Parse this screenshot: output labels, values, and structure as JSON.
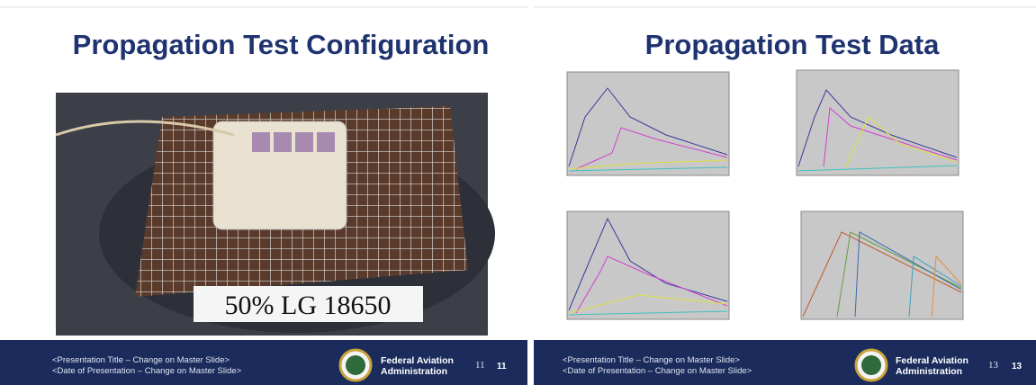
{
  "slides": [
    {
      "title": "Propagation Test Configuration",
      "photo_label": "50% LG 18650",
      "footer": {
        "line1": "<Presentation Title – Change on Master Slide>",
        "line2": "<Date of Presentation – Change on Master Slide>",
        "agency1": "Federal Aviation",
        "agency2": "Administration",
        "page_small": "11",
        "page": "11"
      }
    },
    {
      "title": "Propagation Test Data",
      "footer": {
        "line1": "<Presentation Title – Change on Master Slide>",
        "line2": "<Date of Presentation – Change on Master Slide>",
        "agency1": "Federal Aviation",
        "agency2": "Administration",
        "page_small": "13",
        "page": "13"
      }
    }
  ]
}
